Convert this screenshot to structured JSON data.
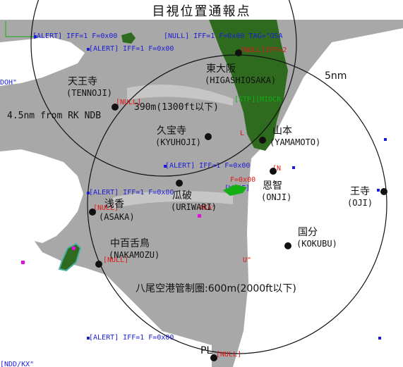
{
  "title": "目視位置通報点",
  "ring_labels": {
    "outer_radius": "5nm",
    "inner_radius": "4.5nm from RK NDB",
    "altitude_note": "390m(1300ft以下)",
    "control_zone": "八尾空港管制圏:600m(2000ft以下)"
  },
  "points": [
    {
      "jp": "天王寺",
      "en": "(TENNOJI)"
    },
    {
      "jp": "東大阪",
      "en": "(HIGASHIOSAKA)"
    },
    {
      "jp": "久宝寺",
      "en": "(KYUHOJI)"
    },
    {
      "jp": "山本",
      "en": "(YAMAMOTO)"
    },
    {
      "jp": "恩智",
      "en": "(ONJI)"
    },
    {
      "jp": "瓜破",
      "en": "(URIWARI)"
    },
    {
      "jp": "浅香",
      "en": "(ASAKA)"
    },
    {
      "jp": "国分",
      "en": "(KOKUBU)"
    },
    {
      "jp": "王寺",
      "en": "(OJI)"
    },
    {
      "jp": "中百舌鳥",
      "en": "(NAKAMOZU)"
    },
    {
      "jp": "PL",
      "en": ""
    }
  ],
  "overlay_tags": {
    "alert_1": "[ALERT] IFF=1 F=0x00",
    "null_1": "[NULL] IFF=1 F=0x00 TAG=\"OSA",
    "alert_2": "[ALERT] IFF=1 F=0x00",
    "null_red_1": "[NULL]IFF=2",
    "alert_3": "[ALERT] IFF=1 F=0x00",
    "alert_4": "[ALERT] IFF=1 F=0x00",
    "alert_5": "[ALERT] IFF=1 F=0x00",
    "null_red_2": "[NULL]",
    "null_red_3": "[NULL]",
    "null_red_4": "[NULL]",
    "null_red_5": "[NULL]",
    "stp_tag": "[STP][MIDCR",
    "f_tag": "F=0x00",
    "worf_tag": "[WORF]",
    "left_edge_1": "DOH\"",
    "left_edge_2": "[NDD/KX\"",
    "u_tag": "U\"",
    "n_tag": "[N",
    "aka_tag": "AKA\"",
    "l_tag": "L"
  },
  "colors": {
    "land": "#a8a8a8",
    "water": "#ffffff",
    "mountain": "#2e6b1e",
    "ring": "#111111",
    "tag_blue": "#1d1dd6",
    "tag_red": "#e01818",
    "tag_green": "#12b012",
    "marker_magenta": "#e010e0"
  }
}
